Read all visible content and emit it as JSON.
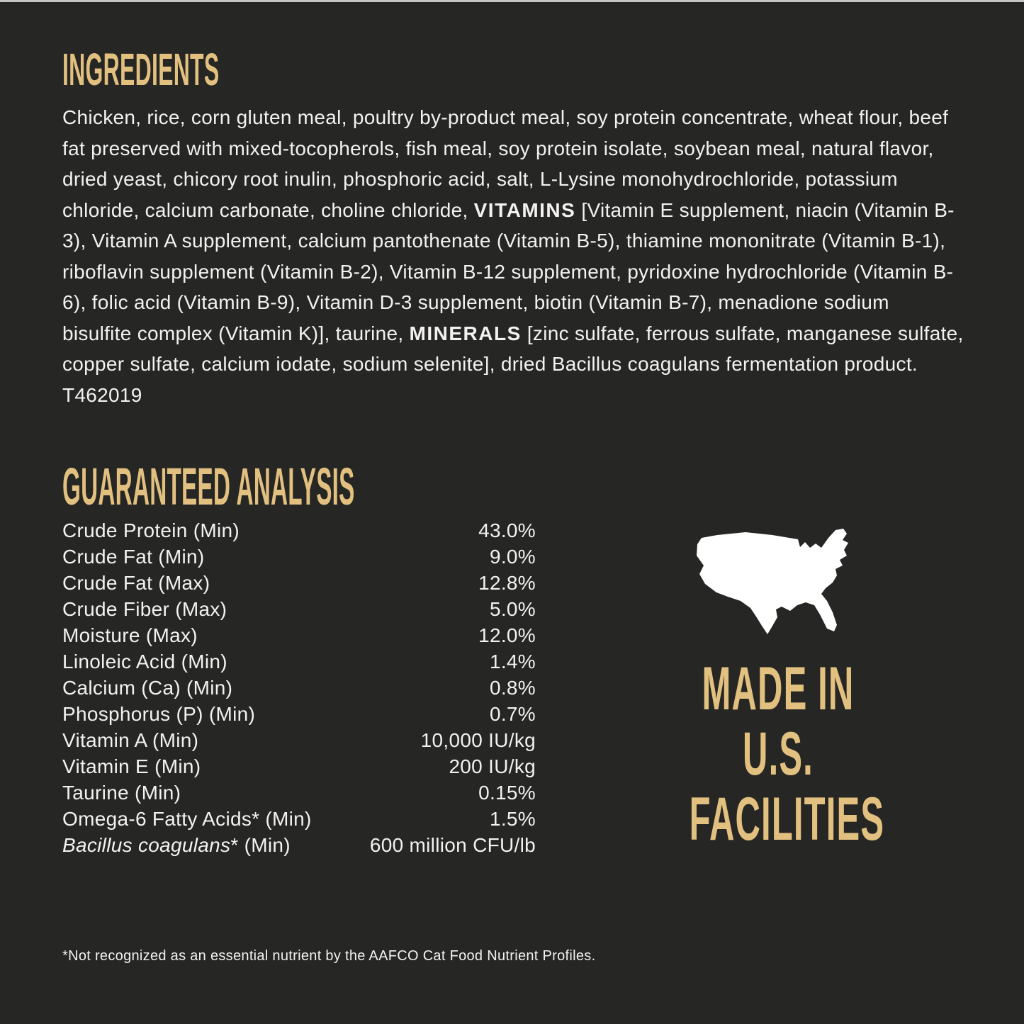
{
  "colors": {
    "background": "#262624",
    "gold": "#e2c07f",
    "text": "#f3f2f0",
    "map": "#ffffff"
  },
  "ingredients": {
    "heading": "INGREDIENTS",
    "seg1": "Chicken, rice, corn gluten meal, poultry by-product meal, soy protein concentrate, wheat flour, beef fat preserved with mixed-tocopherols, fish meal, soy protein isolate, soybean meal, natural flavor, dried yeast, chicory root inulin, phosphoric acid, salt, L-Lysine monohydrochloride, potassium chloride, calcium carbonate, choline chloride, ",
    "vitamins_label": "VITAMINS",
    "seg2": " [Vitamin E supplement, niacin (Vitamin B-3), Vitamin A supplement, calcium pantothenate (Vitamin B-5), thiamine mononitrate (Vitamin B-1), riboflavin supplement (Vitamin B-2), Vitamin B-12 supplement, pyridoxine hydrochloride (Vitamin B-6), folic acid (Vitamin B-9), Vitamin D-3 supplement, biotin (Vitamin B-7), menadione sodium bisulfite complex (Vitamin K)], taurine, ",
    "minerals_label": "MINERALS",
    "seg3": " [zinc sulfate, ferrous sulfate, manganese sulfate, copper sulfate, calcium iodate, sodium selenite], dried Bacillus coagulans fermentation product.",
    "product_code": "T462019"
  },
  "guaranteed_analysis": {
    "heading": "GUARANTEED ANALYSIS",
    "rows": [
      {
        "label": "Crude Protein (Min)",
        "value": "43.0%"
      },
      {
        "label": "Crude Fat (Min)",
        "value": "9.0%"
      },
      {
        "label": "Crude Fat (Max)",
        "value": "12.8%"
      },
      {
        "label": "Crude Fiber (Max)",
        "value": "5.0%"
      },
      {
        "label": "Moisture (Max)",
        "value": "12.0%"
      },
      {
        "label": "Linoleic Acid (Min)",
        "value": "1.4%"
      },
      {
        "label": "Calcium (Ca) (Min)",
        "value": "0.8%"
      },
      {
        "label": "Phosphorus (P) (Min)",
        "value": "0.7%"
      },
      {
        "label": "Vitamin A (Min)",
        "value": "10,000 IU/kg"
      },
      {
        "label": "Vitamin E (Min)",
        "value": "200 IU/kg"
      },
      {
        "label": "Taurine (Min)",
        "value": "0.15%"
      },
      {
        "label": "Omega-6 Fatty Acids* (Min)",
        "value": "1.5%"
      },
      {
        "label_italic": "Bacillus coagulans",
        "label": "* (Min)",
        "value": "600 million CFU/lb"
      }
    ]
  },
  "made_in": {
    "map_icon": "usa-map-icon",
    "lines": [
      "MADE IN",
      "U.S.",
      "FACILITIES"
    ]
  },
  "footnote": "*Not recognized as an essential nutrient by the AAFCO Cat Food Nutrient Profiles."
}
